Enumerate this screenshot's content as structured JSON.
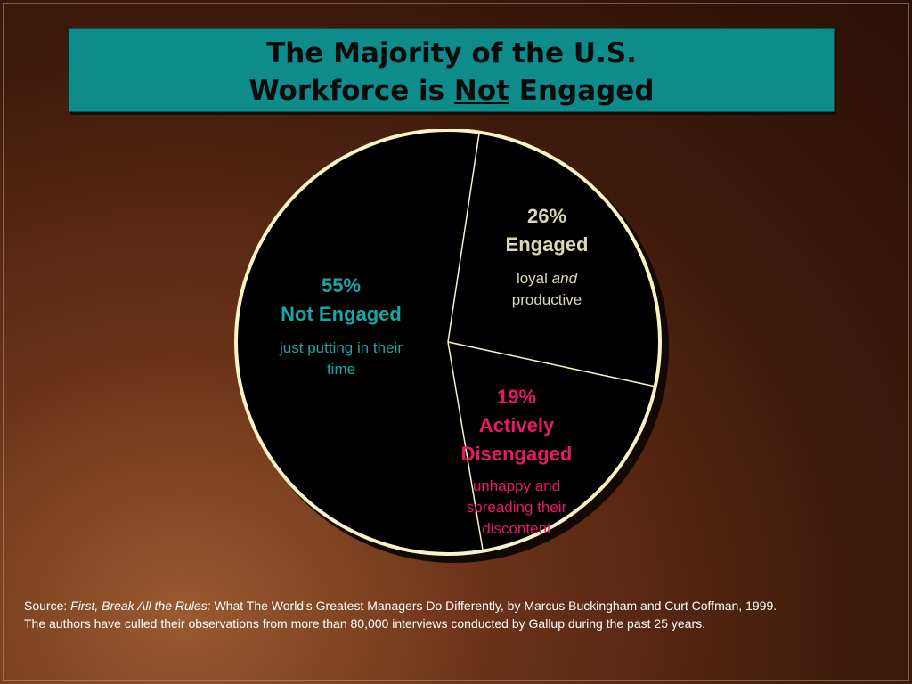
{
  "title": {
    "line1": "The Majority of the U.S.",
    "line2_prefix": "Workforce is",
    "line2_emph": "Not",
    "line2_suffix": "Engaged"
  },
  "chart_data": {
    "type": "pie",
    "slices": [
      {
        "key": "engaged",
        "label": "Engaged",
        "value": 26,
        "pct_text": "26%",
        "color": "#000000"
      },
      {
        "key": "disengaged",
        "label": "Actively Disengaged",
        "value": 19,
        "pct_text": "19%",
        "color": "#000000"
      },
      {
        "key": "not_engaged",
        "label": "Not Engaged",
        "value": 55,
        "pct_text": "55%",
        "color": "#000000"
      }
    ],
    "outline_color": "#f7f3c4",
    "label_colors": {
      "not_engaged": "#1ba5a5",
      "engaged": "#dcd7b4",
      "disengaged": "#e8186a"
    }
  },
  "labels": {
    "not_engaged": {
      "pct": "55%",
      "name": "Not Engaged",
      "desc_line1": "just putting in their",
      "desc_line2": "time"
    },
    "engaged": {
      "pct": "26%",
      "name": "Engaged",
      "desc_plain": "loyal",
      "desc_italic": "and",
      "desc_line2": "productive"
    },
    "disengaged": {
      "pct": "19%",
      "name_line1": "Actively",
      "name_line2": "Disengaged",
      "desc_line1": "unhappy and",
      "desc_line2": "spreading their",
      "desc_line3": "discontent"
    }
  },
  "source": {
    "prefix": "Source:",
    "book": "First, Break All the Rules:",
    "rest": "What The World's Greatest Managers Do Differently, by Marcus Buckingham and Curt Coffman, 1999.",
    "line2": "The authors have culled their observations from more than 80,000 interviews conducted by Gallup during the past 25 years."
  }
}
